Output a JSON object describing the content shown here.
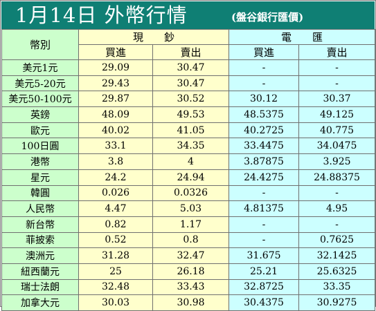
{
  "title": {
    "main": "1月14日 外幣行情",
    "source": "(盤谷銀行匯價)"
  },
  "colors": {
    "title_bg": "#0f7f74",
    "label_col": "#ccffcc",
    "cash_cols": "#ffffcc",
    "wire_cols": "#ccffff"
  },
  "table": {
    "currency_header": "幣別",
    "cash_header": "現　　鈔",
    "wire_header": "電　　匯",
    "buy_label": "買進",
    "sell_label": "賣出",
    "rows": [
      {
        "currency": "美元1元",
        "cash_buy": "29.09",
        "cash_sell": "30.47",
        "wire_buy": "-",
        "wire_sell": "-"
      },
      {
        "currency": "美元5-20元",
        "cash_buy": "29.43",
        "cash_sell": "30.47",
        "wire_buy": "-",
        "wire_sell": "-"
      },
      {
        "currency": "美元50-100元",
        "cash_buy": "29.87",
        "cash_sell": "30.52",
        "wire_buy": "30.12",
        "wire_sell": "30.37"
      },
      {
        "currency": "英鎊",
        "cash_buy": "48.09",
        "cash_sell": "49.53",
        "wire_buy": "48.5375",
        "wire_sell": "49.125"
      },
      {
        "currency": "歐元",
        "cash_buy": "40.02",
        "cash_sell": "41.05",
        "wire_buy": "40.2725",
        "wire_sell": "40.775"
      },
      {
        "currency": "100日圓",
        "cash_buy": "33.1",
        "cash_sell": "34.35",
        "wire_buy": "33.4475",
        "wire_sell": "34.0475"
      },
      {
        "currency": "港幣",
        "cash_buy": "3.8",
        "cash_sell": "4",
        "wire_buy": "3.87875",
        "wire_sell": "3.925"
      },
      {
        "currency": "星元",
        "cash_buy": "24.2",
        "cash_sell": "24.94",
        "wire_buy": "24.4275",
        "wire_sell": "24.88375"
      },
      {
        "currency": "韓圓",
        "cash_buy": "0.026",
        "cash_sell": "0.0326",
        "wire_buy": "-",
        "wire_sell": "-"
      },
      {
        "currency": "人民幣",
        "cash_buy": "4.47",
        "cash_sell": "5.03",
        "wire_buy": "4.81375",
        "wire_sell": "4.95"
      },
      {
        "currency": "新台幣",
        "cash_buy": "0.82",
        "cash_sell": "1.17",
        "wire_buy": "-",
        "wire_sell": "-"
      },
      {
        "currency": "菲披索",
        "cash_buy": "0.52",
        "cash_sell": "0.8",
        "wire_buy": "-",
        "wire_sell": "0.7625"
      },
      {
        "currency": "澳洲元",
        "cash_buy": "31.28",
        "cash_sell": "32.47",
        "wire_buy": "31.675",
        "wire_sell": "32.1425"
      },
      {
        "currency": "紐西蘭元",
        "cash_buy": "25",
        "cash_sell": "26.18",
        "wire_buy": "25.21",
        "wire_sell": "25.6325"
      },
      {
        "currency": "瑞士法朗",
        "cash_buy": "32.48",
        "cash_sell": "33.43",
        "wire_buy": "32.8725",
        "wire_sell": "33.35"
      },
      {
        "currency": "加拿大元",
        "cash_buy": "30.03",
        "cash_sell": "30.98",
        "wire_buy": "30.4375",
        "wire_sell": "30.9275"
      }
    ]
  }
}
